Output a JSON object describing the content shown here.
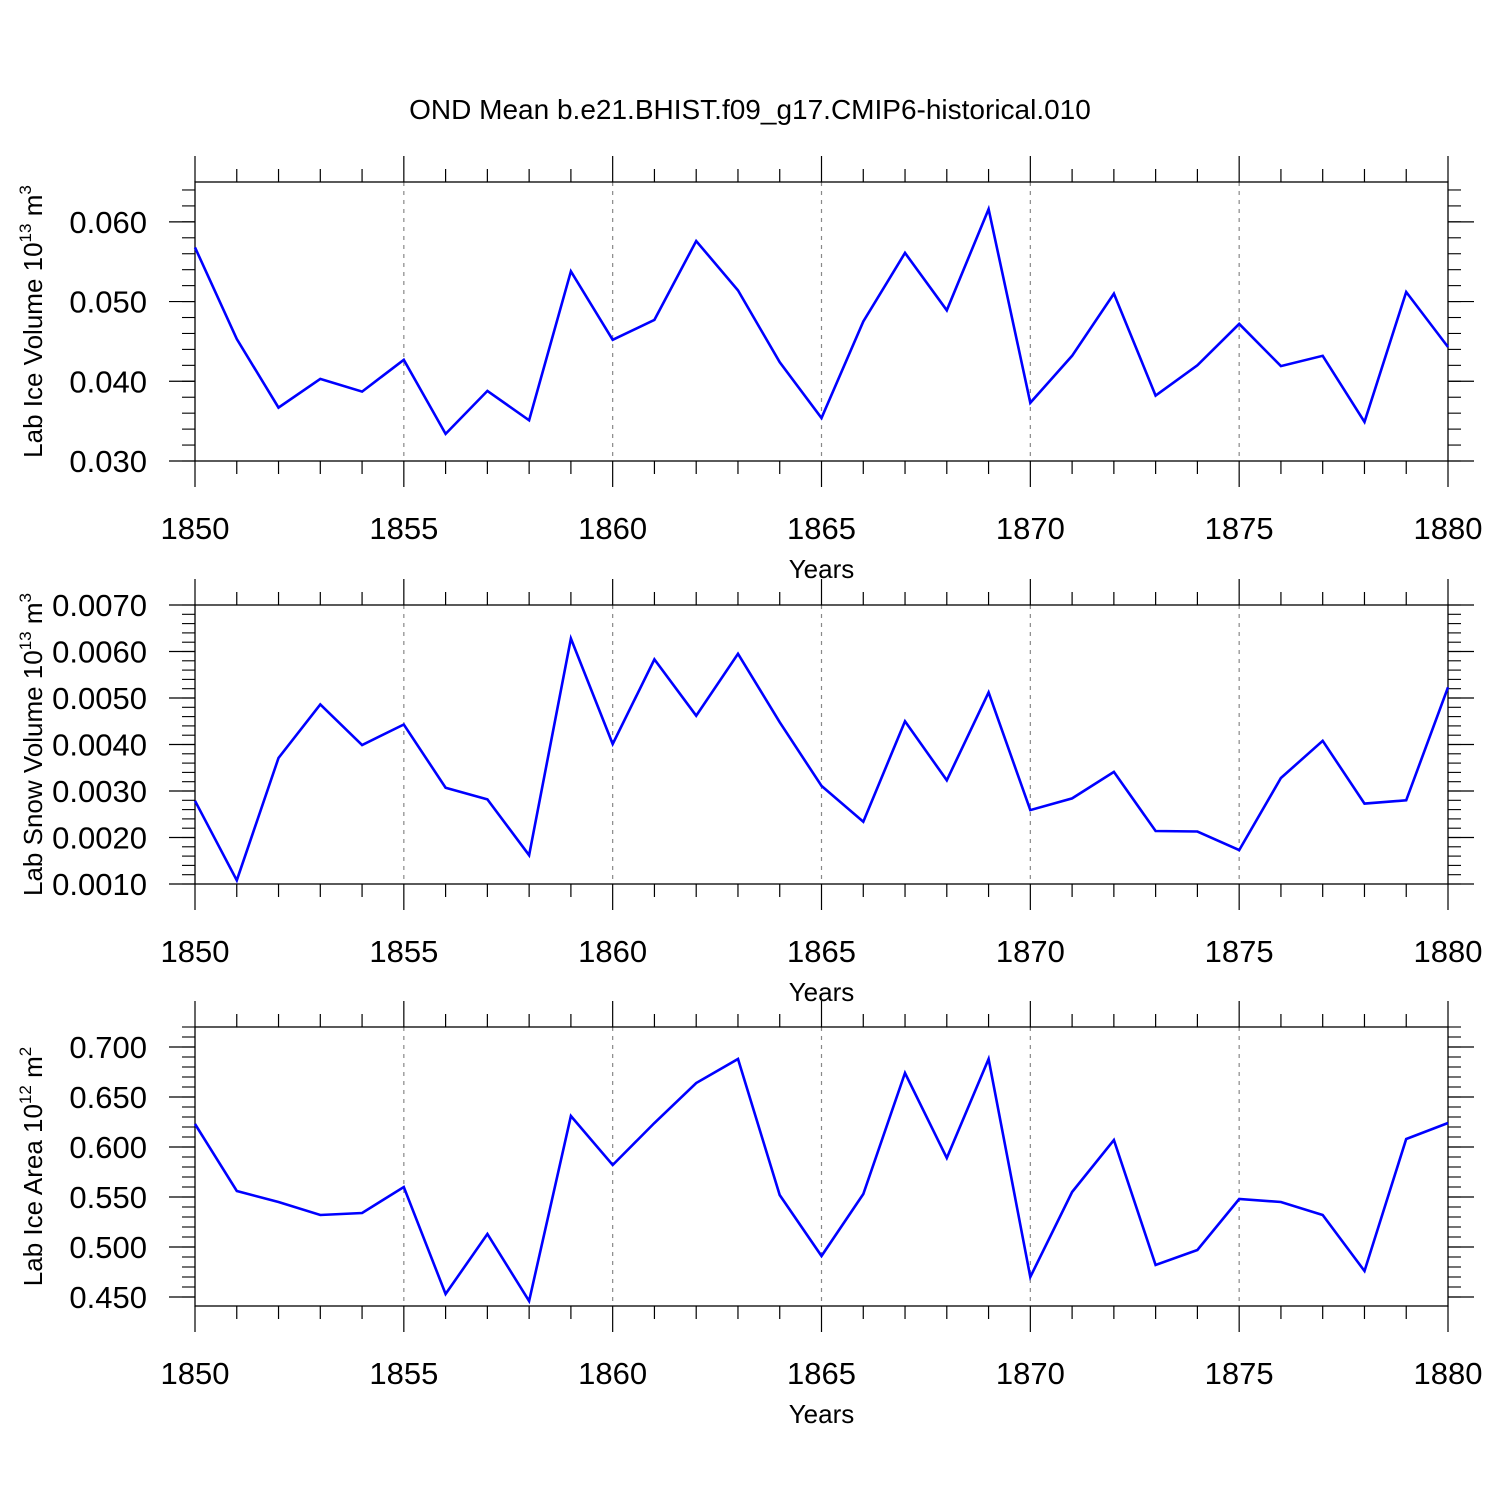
{
  "title": "OND Mean b.e21.BHIST.f09_g17.CMIP6-historical.010",
  "chart_data": [
    {
      "type": "line",
      "ylabel_main": "Lab Ice Volume 10",
      "ylabel_exp": "13",
      "ylabel_unit": " m",
      "ylabel_unit_exp": "3",
      "xlabel": "Years",
      "xlim": [
        1850,
        1880
      ],
      "ylim": [
        0.03,
        0.065
      ],
      "yticks": [
        0.03,
        0.04,
        0.05,
        0.06
      ],
      "ytick_labels": [
        "0.030",
        "0.040",
        "0.050",
        "0.060"
      ],
      "ydecimals": 3,
      "xticks": [
        1850,
        1855,
        1860,
        1865,
        1870,
        1875,
        1880
      ],
      "xtick_labels": [
        "1850",
        "1855",
        "1860",
        "1865",
        "1870",
        "1875",
        "1880"
      ],
      "series": [
        {
          "name": "Lab Ice Volume",
          "color": "#0000ff",
          "x": [
            1850,
            1851,
            1852,
            1853,
            1854,
            1855,
            1856,
            1857,
            1858,
            1859,
            1860,
            1861,
            1862,
            1863,
            1864,
            1865,
            1866,
            1867,
            1868,
            1869,
            1870,
            1871,
            1872,
            1873,
            1874,
            1875,
            1876,
            1877,
            1878,
            1879,
            1880
          ],
          "values": [
            0.0568,
            0.0453,
            0.0367,
            0.0403,
            0.0387,
            0.0427,
            0.0334,
            0.0388,
            0.0351,
            0.0538,
            0.0452,
            0.0477,
            0.0576,
            0.0514,
            0.0424,
            0.0354,
            0.0475,
            0.0561,
            0.0489,
            0.0616,
            0.0373,
            0.0432,
            0.051,
            0.0382,
            0.042,
            0.0472,
            0.0419,
            0.0432,
            0.0349,
            0.0512,
            0.0443
          ]
        }
      ]
    },
    {
      "type": "line",
      "ylabel_main": "Lab Snow Volume 10",
      "ylabel_exp": "13",
      "ylabel_unit": " m",
      "ylabel_unit_exp": "3",
      "xlabel": "Years",
      "xlim": [
        1850,
        1880
      ],
      "ylim": [
        0.001,
        0.007
      ],
      "yticks": [
        0.001,
        0.002,
        0.003,
        0.004,
        0.005,
        0.006,
        0.007
      ],
      "ytick_labels": [
        "0.0010",
        "0.0020",
        "0.0030",
        "0.0040",
        "0.0050",
        "0.0060",
        "0.0070"
      ],
      "ydecimals": 4,
      "xticks": [
        1850,
        1855,
        1860,
        1865,
        1870,
        1875,
        1880
      ],
      "xtick_labels": [
        "1850",
        "1855",
        "1860",
        "1865",
        "1870",
        "1875",
        "1880"
      ],
      "series": [
        {
          "name": "Lab Snow Volume",
          "color": "#0000ff",
          "x": [
            1850,
            1851,
            1852,
            1853,
            1854,
            1855,
            1856,
            1857,
            1858,
            1859,
            1860,
            1861,
            1862,
            1863,
            1864,
            1865,
            1866,
            1867,
            1868,
            1869,
            1870,
            1871,
            1872,
            1873,
            1874,
            1875,
            1876,
            1877,
            1878,
            1879,
            1880
          ],
          "values": [
            0.00279,
            0.00108,
            0.00371,
            0.00486,
            0.00399,
            0.00443,
            0.00307,
            0.00282,
            0.00162,
            0.00628,
            0.00401,
            0.00583,
            0.00462,
            0.00595,
            0.00448,
            0.00311,
            0.00234,
            0.0045,
            0.00323,
            0.00512,
            0.00259,
            0.00284,
            0.00341,
            0.00214,
            0.00213,
            0.00173,
            0.00328,
            0.00408,
            0.00273,
            0.0028,
            0.00523
          ]
        }
      ]
    },
    {
      "type": "line",
      "ylabel_main": "Lab Ice Area 10",
      "ylabel_exp": "12",
      "ylabel_unit": " m",
      "ylabel_unit_exp": "2",
      "xlabel": "Years",
      "xlim": [
        1850,
        1880
      ],
      "ylim": [
        0.441,
        0.72
      ],
      "yticks": [
        0.45,
        0.5,
        0.55,
        0.6,
        0.65,
        0.7
      ],
      "ytick_labels": [
        "0.450",
        "0.500",
        "0.550",
        "0.600",
        "0.650",
        "0.700"
      ],
      "ydecimals": 3,
      "xticks": [
        1850,
        1855,
        1860,
        1865,
        1870,
        1875,
        1880
      ],
      "xtick_labels": [
        "1850",
        "1855",
        "1860",
        "1865",
        "1870",
        "1875",
        "1880"
      ],
      "series": [
        {
          "name": "Lab Ice Area",
          "color": "#0000ff",
          "x": [
            1850,
            1851,
            1852,
            1853,
            1854,
            1855,
            1856,
            1857,
            1858,
            1859,
            1860,
            1861,
            1862,
            1863,
            1864,
            1865,
            1866,
            1867,
            1868,
            1869,
            1870,
            1871,
            1872,
            1873,
            1874,
            1875,
            1876,
            1877,
            1878,
            1879,
            1880
          ],
          "values": [
            0.623,
            0.556,
            0.545,
            0.532,
            0.534,
            0.56,
            0.453,
            0.513,
            0.446,
            0.631,
            0.582,
            0.624,
            0.664,
            0.688,
            0.552,
            0.491,
            0.553,
            0.674,
            0.589,
            0.688,
            0.47,
            0.555,
            0.607,
            0.482,
            0.497,
            0.548,
            0.545,
            0.532,
            0.476,
            0.608,
            0.624
          ]
        }
      ]
    }
  ]
}
